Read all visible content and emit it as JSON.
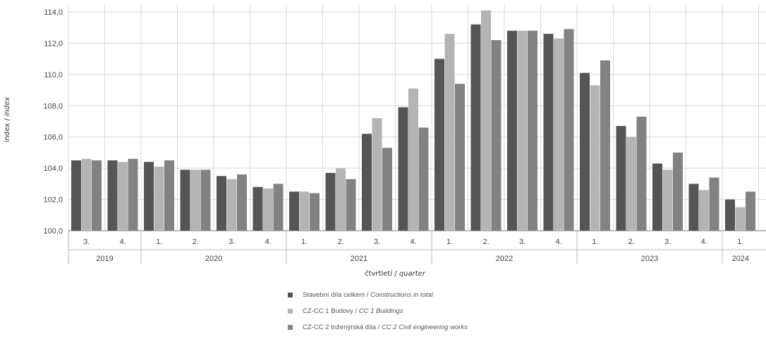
{
  "chart_data": {
    "type": "bar",
    "ylabel_a": "index",
    "ylabel_sep": " / ",
    "ylabel_b": "index",
    "xlabel_a": "čtvrtletí",
    "xlabel_sep": " / ",
    "xlabel_b": "quarter",
    "ylim": [
      100,
      114
    ],
    "yticks": [
      "100,0",
      "102,0",
      "104,0",
      "106,0",
      "108,0",
      "110,0",
      "112,0",
      "114,0"
    ],
    "grid": true,
    "legend_position": "bottom",
    "categories": [
      "3.",
      "4.",
      "1.",
      "2.",
      "3.",
      "4.",
      "1.",
      "2.",
      "3.",
      "4.",
      "1.",
      "2.",
      "3.",
      "4.",
      "1.",
      "2.",
      "3.",
      "4.",
      "1."
    ],
    "years": [
      {
        "label": "2019",
        "count": 2
      },
      {
        "label": "2020",
        "count": 4
      },
      {
        "label": "2021",
        "count": 4
      },
      {
        "label": "2022",
        "count": 4
      },
      {
        "label": "2023",
        "count": 4
      },
      {
        "label": "2024",
        "count": 1
      }
    ],
    "series": [
      {
        "name_a": "Stavební díla celkem",
        "name_sep": " / ",
        "name_b": "Constructions in total",
        "color": "#555555",
        "values": [
          104.5,
          104.5,
          104.4,
          103.9,
          103.5,
          102.8,
          102.5,
          103.7,
          106.2,
          107.9,
          111.0,
          113.2,
          112.8,
          112.6,
          110.1,
          106.7,
          104.3,
          103.0,
          102.0
        ]
      },
      {
        "name_a": "CZ-CC 1 Budovy",
        "name_sep": " / ",
        "name_b": "CC 1 Buildings",
        "color": "#b4b4b4",
        "values": [
          104.6,
          104.4,
          104.1,
          103.9,
          103.3,
          102.7,
          102.5,
          104.0,
          107.2,
          109.1,
          112.6,
          114.1,
          112.8,
          112.3,
          109.3,
          106.0,
          103.9,
          102.6,
          101.5
        ]
      },
      {
        "name_a": "CZ-CC 2 Inženýrská díla",
        "name_sep": " / ",
        "name_b": "CC 2 Civil engineering works",
        "color": "#828282",
        "values": [
          104.5,
          104.6,
          104.5,
          103.9,
          103.6,
          103.0,
          102.4,
          103.3,
          105.3,
          106.6,
          109.4,
          112.2,
          112.8,
          112.9,
          110.9,
          107.3,
          105.0,
          103.4,
          102.5
        ]
      }
    ]
  }
}
